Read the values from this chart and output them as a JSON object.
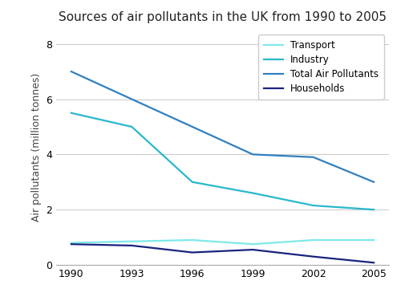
{
  "title": "Sources of air pollutants in the UK from 1990 to 2005",
  "ylabel": "Air pollutants (million tonnes)",
  "years": [
    1990,
    1993,
    1996,
    1999,
    2002,
    2005
  ],
  "series": {
    "Transport": {
      "values": [
        0.8,
        0.85,
        0.9,
        0.75,
        0.9,
        0.9
      ],
      "color": "#7fe8e8",
      "linewidth": 1.6
    },
    "Industry": {
      "values": [
        5.5,
        5.0,
        3.0,
        2.6,
        2.15,
        2.0
      ],
      "color": "#29b8cc",
      "linewidth": 1.6
    },
    "Total Air Pollutants": {
      "values": [
        7.0,
        6.0,
        5.0,
        4.0,
        3.9,
        3.0
      ],
      "color": "#3080c0",
      "linewidth": 1.6
    },
    "Households": {
      "values": [
        0.75,
        0.7,
        0.45,
        0.55,
        0.3,
        0.08
      ],
      "color": "#1a237e",
      "linewidth": 1.6
    }
  },
  "ylim": [
    0,
    8.5
  ],
  "yticks": [
    0,
    2,
    4,
    6,
    8
  ],
  "background_color": "#ffffff",
  "legend_order": [
    "Transport",
    "Industry",
    "Total Air Pollutants",
    "Households"
  ],
  "title_fontsize": 11,
  "ylabel_fontsize": 9,
  "tick_fontsize": 9,
  "legend_fontsize": 8.5
}
